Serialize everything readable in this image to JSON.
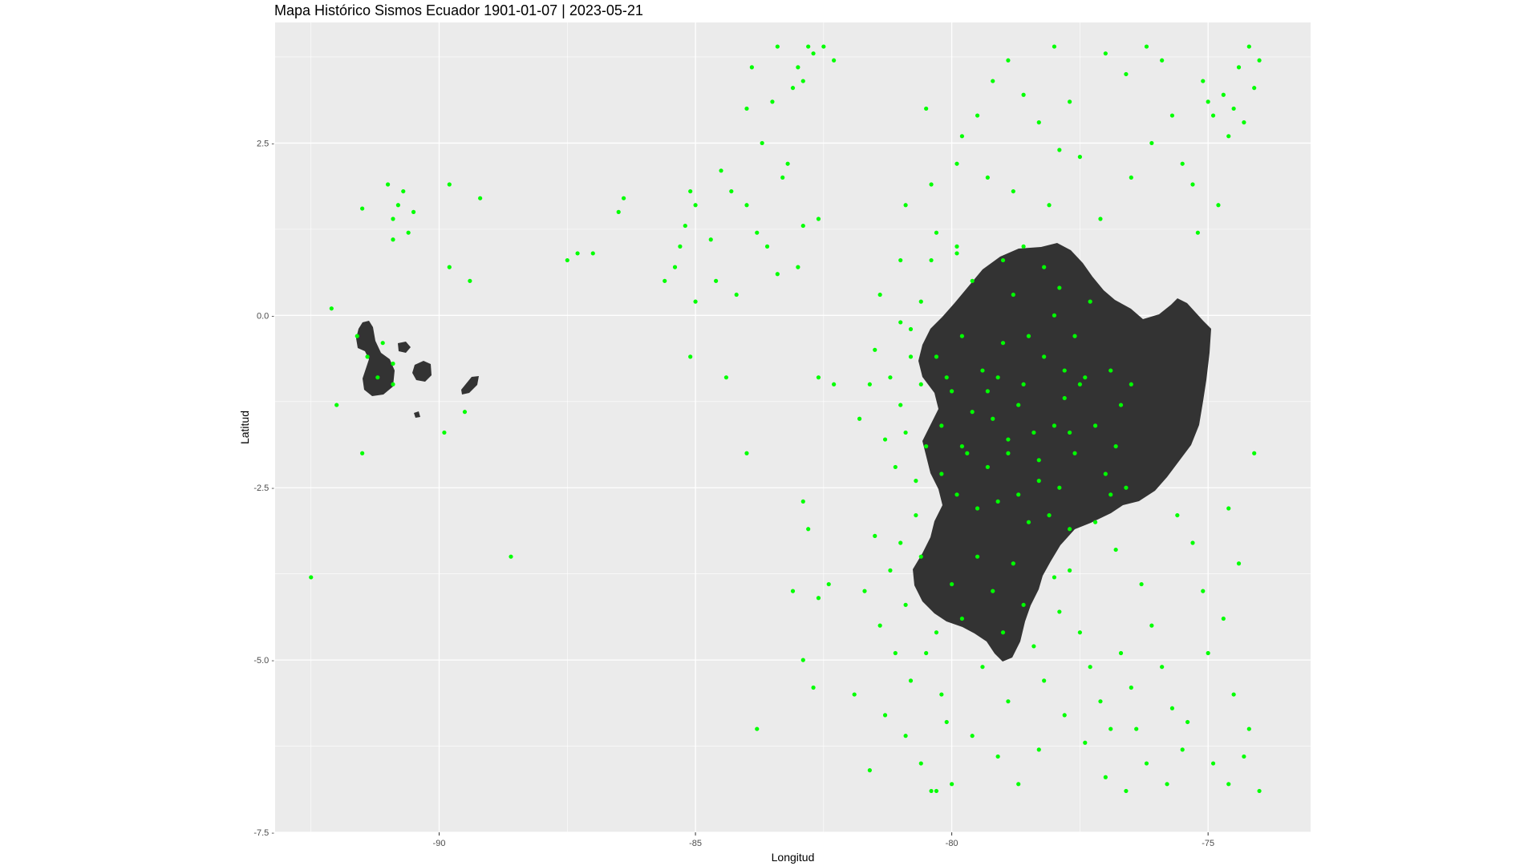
{
  "chart_data": {
    "type": "scatter",
    "title": "Mapa Histórico Sismos Ecuador 1901-01-07 | 2023-05-21",
    "xlabel": "Longitud",
    "ylabel": "Latitud",
    "xlim": [
      -93.2,
      -73.0
    ],
    "ylim": [
      -7.5,
      4.25
    ],
    "x_ticks": [
      -90,
      -85,
      -80,
      -75
    ],
    "x_tick_labels": [
      "-90",
      "-85",
      "-80",
      "-75"
    ],
    "y_ticks": [
      2.5,
      0.0,
      -2.5,
      -5.0,
      -7.5
    ],
    "y_tick_labels": [
      "2.5 -",
      "0.0 -",
      "-2.5 -",
      "-5.0 -",
      "-7.5 -"
    ],
    "grid": true,
    "background": "#ebebeb",
    "point_color": "#00ff00",
    "land_color": "#333333",
    "series": [
      {
        "points": [
          [
            -90.8,
            1.6
          ],
          [
            -90.9,
            1.4
          ],
          [
            -90.7,
            1.8
          ],
          [
            -91.0,
            1.9
          ],
          [
            -90.6,
            1.2
          ],
          [
            -90.9,
            1.1
          ],
          [
            -90.5,
            1.5
          ],
          [
            -91.5,
            1.55
          ],
          [
            -92.1,
            0.1
          ],
          [
            -91.1,
            -0.4
          ],
          [
            -90.9,
            -0.7
          ],
          [
            -91.2,
            -0.9
          ],
          [
            -90.9,
            -1.0
          ],
          [
            -91.6,
            -0.3
          ],
          [
            -91.4,
            -0.6
          ],
          [
            -92.0,
            -1.3
          ],
          [
            -91.5,
            -2.0
          ],
          [
            -92.5,
            -3.8
          ],
          [
            -89.8,
            0.7
          ],
          [
            -89.8,
            1.9
          ],
          [
            -89.4,
            0.5
          ],
          [
            -89.2,
            1.7
          ],
          [
            -89.9,
            -1.7
          ],
          [
            -89.5,
            -1.4
          ],
          [
            -87.5,
            0.8
          ],
          [
            -87.3,
            0.9
          ],
          [
            -87.0,
            0.9
          ],
          [
            -86.5,
            1.5
          ],
          [
            -86.4,
            1.7
          ],
          [
            -88.6,
            -3.5
          ],
          [
            -85.2,
            1.3
          ],
          [
            -85.3,
            1.0
          ],
          [
            -85.0,
            1.6
          ],
          [
            -85.4,
            0.7
          ],
          [
            -85.1,
            1.8
          ],
          [
            -84.7,
            1.1
          ],
          [
            -84.5,
            2.1
          ],
          [
            -84.3,
            1.8
          ],
          [
            -84.0,
            1.6
          ],
          [
            -84.6,
            0.5
          ],
          [
            -85.6,
            0.5
          ],
          [
            -85.0,
            0.2
          ],
          [
            -84.4,
            -0.9
          ],
          [
            -84.2,
            0.3
          ],
          [
            -85.1,
            -0.6
          ],
          [
            -84.0,
            -2.0
          ],
          [
            -83.0,
            3.6
          ],
          [
            -82.9,
            3.4
          ],
          [
            -82.7,
            3.8
          ],
          [
            -82.5,
            3.9
          ],
          [
            -82.3,
            3.7
          ],
          [
            -83.1,
            3.3
          ],
          [
            -82.8,
            3.9
          ],
          [
            -83.4,
            3.9
          ],
          [
            -83.9,
            3.6
          ],
          [
            -84.0,
            3.0
          ],
          [
            -83.5,
            3.1
          ],
          [
            -83.7,
            2.5
          ],
          [
            -83.3,
            2.0
          ],
          [
            -82.9,
            1.3
          ],
          [
            -83.6,
            1.0
          ],
          [
            -83.4,
            0.6
          ],
          [
            -83.0,
            0.7
          ],
          [
            -82.6,
            1.4
          ],
          [
            -83.8,
            1.2
          ],
          [
            -83.2,
            2.2
          ],
          [
            -82.9,
            -2.7
          ],
          [
            -82.8,
            -3.1
          ],
          [
            -83.1,
            -4.0
          ],
          [
            -82.6,
            -4.1
          ],
          [
            -82.4,
            -3.9
          ],
          [
            -82.9,
            -5.0
          ],
          [
            -82.7,
            -5.4
          ],
          [
            -83.8,
            -6.0
          ],
          [
            -82.6,
            -0.9
          ],
          [
            -82.3,
            -1.0
          ],
          [
            -79.8,
            2.6
          ],
          [
            -79.5,
            2.9
          ],
          [
            -79.2,
            3.4
          ],
          [
            -78.9,
            3.7
          ],
          [
            -78.6,
            3.2
          ],
          [
            -78.3,
            2.8
          ],
          [
            -78.0,
            3.9
          ],
          [
            -77.7,
            3.1
          ],
          [
            -79.9,
            2.2
          ],
          [
            -79.3,
            2.0
          ],
          [
            -78.8,
            1.8
          ],
          [
            -78.1,
            1.6
          ],
          [
            -77.5,
            2.3
          ],
          [
            -77.9,
            2.4
          ],
          [
            -80.5,
            3.0
          ],
          [
            -80.4,
            1.9
          ],
          [
            -80.9,
            1.6
          ],
          [
            -81.0,
            0.8
          ],
          [
            -80.3,
            1.2
          ],
          [
            -79.9,
            1.0
          ],
          [
            -77.0,
            3.8
          ],
          [
            -76.6,
            3.5
          ],
          [
            -76.2,
            3.9
          ],
          [
            -75.9,
            3.7
          ],
          [
            -75.7,
            2.9
          ],
          [
            -75.5,
            2.2
          ],
          [
            -75.3,
            1.9
          ],
          [
            -76.1,
            2.5
          ],
          [
            -76.5,
            2.0
          ],
          [
            -77.1,
            1.4
          ],
          [
            -75.2,
            1.2
          ],
          [
            -74.7,
            3.2
          ],
          [
            -74.5,
            3.0
          ],
          [
            -74.2,
            3.9
          ],
          [
            -74.1,
            3.3
          ],
          [
            -74.9,
            2.9
          ],
          [
            -74.6,
            2.6
          ],
          [
            -74.4,
            3.6
          ],
          [
            -75.0,
            3.1
          ],
          [
            -74.3,
            2.8
          ],
          [
            -75.1,
            3.4
          ],
          [
            -74.0,
            3.7
          ],
          [
            -74.8,
            1.6
          ],
          [
            -81.5,
            -0.5
          ],
          [
            -81.2,
            -0.9
          ],
          [
            -81.0,
            -1.3
          ],
          [
            -80.8,
            -0.2
          ],
          [
            -80.6,
            0.2
          ],
          [
            -80.3,
            -0.6
          ],
          [
            -80.0,
            -1.1
          ],
          [
            -79.8,
            -0.3
          ],
          [
            -79.6,
            0.5
          ],
          [
            -79.4,
            -0.8
          ],
          [
            -79.2,
            -1.5
          ],
          [
            -79.0,
            -0.4
          ],
          [
            -78.8,
            0.3
          ],
          [
            -78.6,
            -1.0
          ],
          [
            -78.4,
            -1.7
          ],
          [
            -78.2,
            -0.6
          ],
          [
            -78.0,
            0.0
          ],
          [
            -77.8,
            -1.2
          ],
          [
            -77.6,
            -2.0
          ],
          [
            -77.4,
            -0.9
          ],
          [
            -77.2,
            -1.6
          ],
          [
            -77.0,
            -2.3
          ],
          [
            -76.8,
            -1.9
          ],
          [
            -76.6,
            -2.5
          ],
          [
            -81.3,
            -1.8
          ],
          [
            -81.1,
            -2.2
          ],
          [
            -80.9,
            -1.7
          ],
          [
            -80.7,
            -2.4
          ],
          [
            -80.5,
            -1.9
          ],
          [
            -80.2,
            -2.3
          ],
          [
            -79.9,
            -2.6
          ],
          [
            -79.7,
            -2.0
          ],
          [
            -79.5,
            -2.8
          ],
          [
            -79.3,
            -2.2
          ],
          [
            -79.1,
            -2.7
          ],
          [
            -78.9,
            -2.0
          ],
          [
            -78.7,
            -2.6
          ],
          [
            -78.5,
            -3.0
          ],
          [
            -78.3,
            -2.4
          ],
          [
            -78.1,
            -2.9
          ],
          [
            -77.9,
            -2.5
          ],
          [
            -77.7,
            -3.1
          ],
          [
            -81.4,
            0.3
          ],
          [
            -81.6,
            -1.0
          ],
          [
            -81.8,
            -1.5
          ],
          [
            -80.4,
            0.8
          ],
          [
            -79.9,
            0.9
          ],
          [
            -79.0,
            0.8
          ],
          [
            -78.6,
            1.0
          ],
          [
            -78.2,
            0.7
          ],
          [
            -77.9,
            0.4
          ],
          [
            -77.6,
            -0.3
          ],
          [
            -77.3,
            0.2
          ],
          [
            -76.9,
            -0.8
          ],
          [
            -76.7,
            -1.3
          ],
          [
            -80.1,
            -0.9
          ],
          [
            -79.3,
            -1.1
          ],
          [
            -78.7,
            -1.3
          ],
          [
            -78.0,
            -1.6
          ],
          [
            -77.5,
            -1.0
          ],
          [
            -80.8,
            -0.6
          ],
          [
            -80.2,
            -1.6
          ],
          [
            -79.6,
            -1.4
          ],
          [
            -78.9,
            -1.8
          ],
          [
            -78.3,
            -2.1
          ],
          [
            -77.8,
            -0.8
          ],
          [
            -81.0,
            -0.1
          ],
          [
            -80.6,
            -1.0
          ],
          [
            -79.8,
            -1.9
          ],
          [
            -79.1,
            -0.9
          ],
          [
            -78.5,
            -0.3
          ],
          [
            -77.7,
            -1.7
          ],
          [
            -76.9,
            -2.6
          ],
          [
            -76.5,
            -1.0
          ],
          [
            -81.5,
            -3.2
          ],
          [
            -81.2,
            -3.7
          ],
          [
            -80.9,
            -4.2
          ],
          [
            -80.6,
            -3.5
          ],
          [
            -80.3,
            -4.6
          ],
          [
            -80.0,
            -3.9
          ],
          [
            -81.7,
            -4.0
          ],
          [
            -81.4,
            -4.5
          ],
          [
            -81.1,
            -4.9
          ],
          [
            -80.8,
            -5.3
          ],
          [
            -80.5,
            -4.9
          ],
          [
            -80.2,
            -5.5
          ],
          [
            -81.3,
            -5.8
          ],
          [
            -80.9,
            -6.1
          ],
          [
            -80.6,
            -6.5
          ],
          [
            -80.3,
            -6.9
          ],
          [
            -81.6,
            -6.6
          ],
          [
            -81.9,
            -5.5
          ],
          [
            -81.0,
            -3.3
          ],
          [
            -80.7,
            -2.9
          ],
          [
            -79.5,
            -3.5
          ],
          [
            -79.2,
            -4.0
          ],
          [
            -79.0,
            -4.6
          ],
          [
            -78.8,
            -3.6
          ],
          [
            -78.6,
            -4.2
          ],
          [
            -78.4,
            -4.8
          ],
          [
            -78.2,
            -5.3
          ],
          [
            -77.9,
            -4.3
          ],
          [
            -77.7,
            -3.7
          ],
          [
            -77.5,
            -4.6
          ],
          [
            -77.3,
            -5.1
          ],
          [
            -77.1,
            -5.6
          ],
          [
            -76.9,
            -6.0
          ],
          [
            -76.7,
            -4.9
          ],
          [
            -76.5,
            -5.4
          ],
          [
            -76.3,
            -3.9
          ],
          [
            -76.1,
            -4.5
          ],
          [
            -75.9,
            -5.1
          ],
          [
            -75.7,
            -5.7
          ],
          [
            -75.5,
            -6.3
          ],
          [
            -75.3,
            -3.3
          ],
          [
            -75.1,
            -4.0
          ],
          [
            -75.6,
            -2.9
          ],
          [
            -75.8,
            -6.8
          ],
          [
            -76.2,
            -6.5
          ],
          [
            -76.6,
            -6.9
          ],
          [
            -77.0,
            -6.7
          ],
          [
            -77.4,
            -6.2
          ],
          [
            -77.8,
            -5.8
          ],
          [
            -78.3,
            -6.3
          ],
          [
            -78.7,
            -6.8
          ],
          [
            -79.1,
            -6.4
          ],
          [
            -79.6,
            -6.1
          ],
          [
            -80.0,
            -6.8
          ],
          [
            -80.4,
            -6.9
          ],
          [
            -74.6,
            -6.8
          ],
          [
            -74.3,
            -6.4
          ],
          [
            -74.0,
            -6.9
          ],
          [
            -74.2,
            -6.0
          ],
          [
            -74.5,
            -5.5
          ],
          [
            -74.7,
            -4.4
          ],
          [
            -74.4,
            -3.6
          ],
          [
            -74.1,
            -2.0
          ],
          [
            -74.6,
            -2.8
          ],
          [
            -75.0,
            -4.9
          ],
          [
            -76.8,
            -3.4
          ],
          [
            -77.2,
            -3.0
          ],
          [
            -78.0,
            -3.8
          ],
          [
            -78.9,
            -5.6
          ],
          [
            -79.4,
            -5.1
          ],
          [
            -79.8,
            -4.4
          ],
          [
            -80.1,
            -5.9
          ],
          [
            -76.4,
            -6.0
          ],
          [
            -75.4,
            -5.9
          ],
          [
            -74.9,
            -6.5
          ]
        ]
      }
    ]
  }
}
